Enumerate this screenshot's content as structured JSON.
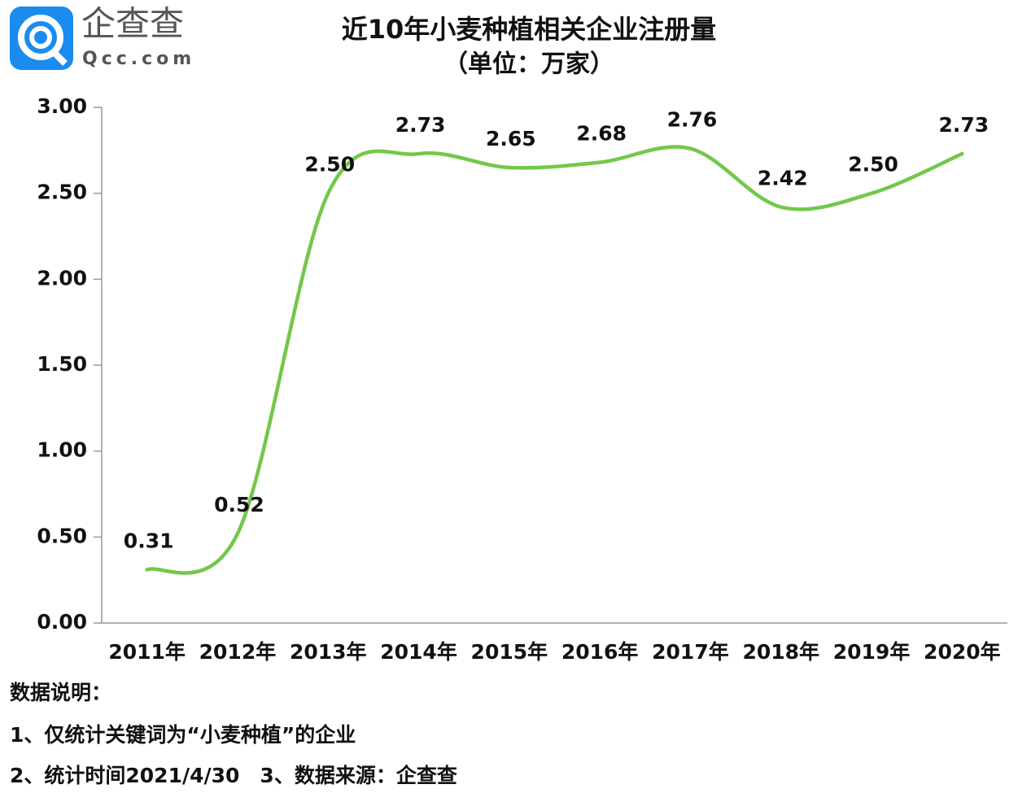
{
  "logo": {
    "name": "企查查",
    "domain": "Qcc.com"
  },
  "chart_data": {
    "type": "line",
    "title": "近10年小麦种植相关企业注册量",
    "subtitle": "（单位：万家）",
    "categories": [
      "2011年",
      "2012年",
      "2013年",
      "2014年",
      "2015年",
      "2016年",
      "2017年",
      "2018年",
      "2019年",
      "2020年"
    ],
    "values": [
      0.31,
      0.52,
      2.5,
      2.73,
      2.65,
      2.68,
      2.76,
      2.42,
      2.5,
      2.73
    ],
    "value_labels": [
      "0.31",
      "0.52",
      "2.50",
      "2.73",
      "2.65",
      "2.68",
      "2.76",
      "2.42",
      "2.50",
      "2.73"
    ],
    "color": "#72c84a",
    "smooth": true,
    "ylim": [
      0,
      3
    ],
    "yticks": [
      {
        "value": 0,
        "label": "0.00"
      },
      {
        "value": 0.5,
        "label": "0.50"
      },
      {
        "value": 1,
        "label": "1.00"
      },
      {
        "value": 1.5,
        "label": "1.50"
      },
      {
        "value": 2,
        "label": "2.00"
      },
      {
        "value": 2.5,
        "label": "2.50"
      },
      {
        "value": 3,
        "label": "3.00"
      }
    ],
    "grid": false
  },
  "notes": [
    "数据说明：",
    "1、仅统计关键词为“小麦种植”的企业",
    "2、统计时间2021/4/30　3、数据来源：企查查"
  ]
}
